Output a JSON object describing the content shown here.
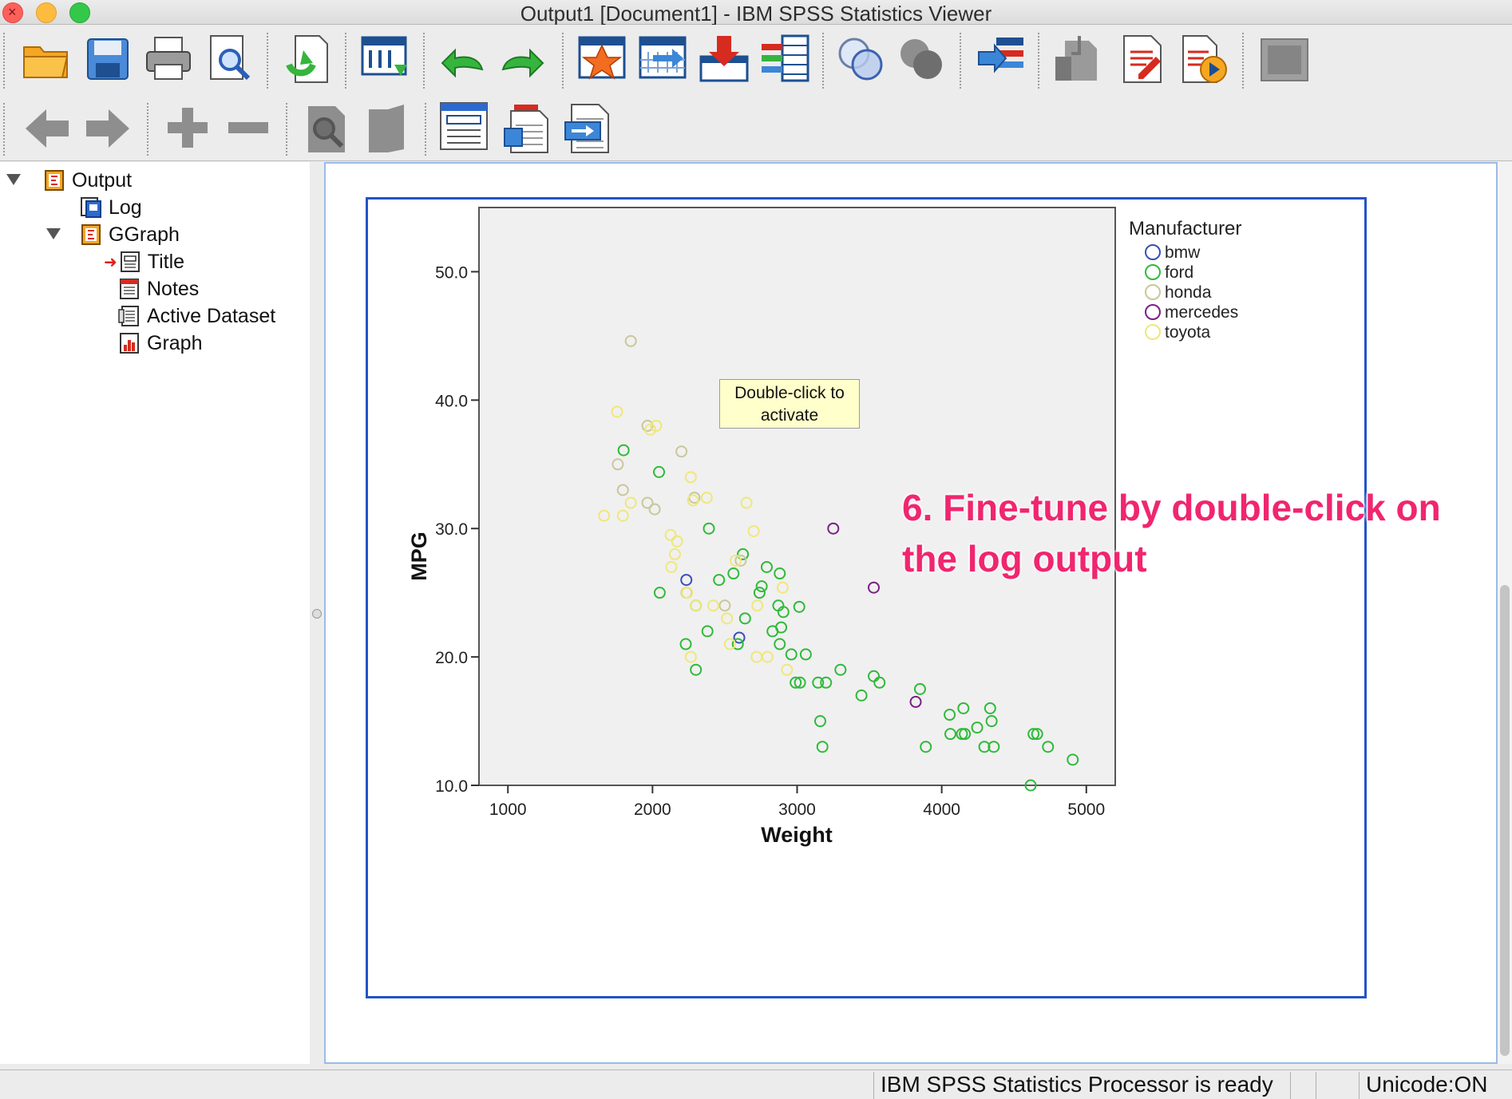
{
  "window": {
    "title": "Output1 [Document1] - IBM SPSS Statistics Viewer"
  },
  "toolbar_row1": [
    "open-icon",
    "save-icon",
    "print-icon",
    "print-preview-icon",
    "export-icon",
    "go-to-data-icon",
    "undo-icon",
    "redo-icon",
    "insert-output-icon",
    "go-to-case-icon",
    "import-icon",
    "variables-icon",
    "select-cases-icon",
    "weight-cases-icon",
    "designate-window-icon",
    "promote-icon",
    "insert-heading-icon",
    "insert-new-text-icon",
    "run-script-icon",
    "disabled-panel-icon"
  ],
  "toolbar_row2": [
    "back-icon",
    "forward-icon",
    "expand-icon",
    "collapse-icon",
    "show-icon",
    "hide-icon",
    "insert-title-icon",
    "insert-text-icon",
    "insert-file-icon"
  ],
  "outline": {
    "items": [
      {
        "label": "Output",
        "icon": "output-book-icon"
      },
      {
        "label": "Log",
        "icon": "log-icon"
      },
      {
        "label": "GGraph",
        "icon": "ggraph-book-icon"
      },
      {
        "label": "Title",
        "icon": "title-icon"
      },
      {
        "label": "Notes",
        "icon": "notes-icon"
      },
      {
        "label": "Active Dataset",
        "icon": "dataset-icon"
      },
      {
        "label": "Graph",
        "icon": "graph-icon"
      }
    ]
  },
  "tooltip": {
    "line1": "Double-click to",
    "line2": "activate"
  },
  "annotation": {
    "line1": "6. Fine-tune by double-click on",
    "line2": "the log output"
  },
  "status": {
    "processor": "IBM SPSS Statistics Processor is ready",
    "unicode": "Unicode:ON"
  },
  "colors": {
    "bmw": "#3a4fb6",
    "ford": "#2fba3a",
    "honda": "#c9c79a",
    "mercedes": "#7b1f86",
    "toyota": "#efe77a",
    "selection": "#2353c6",
    "annotation": "#f0266f"
  },
  "chart_data": {
    "type": "scatter",
    "xlabel": "Weight",
    "ylabel": "MPG",
    "xlim": [
      800,
      5200
    ],
    "ylim": [
      10,
      55
    ],
    "xticks": [
      1000,
      2000,
      3000,
      4000,
      5000
    ],
    "yticks": [
      10.0,
      20.0,
      30.0,
      40.0,
      50.0
    ],
    "legend": {
      "title": "Manufacturer",
      "position": "right"
    },
    "series": [
      {
        "name": "bmw",
        "points": [
          [
            2234,
            26.0
          ],
          [
            2600,
            21.5
          ]
        ]
      },
      {
        "name": "ford",
        "points": [
          [
            1800,
            36.1
          ],
          [
            2045,
            34.4
          ],
          [
            2050,
            25.0
          ],
          [
            2230,
            21.0
          ],
          [
            2300,
            24.0
          ],
          [
            2300,
            19.0
          ],
          [
            2380,
            22.0
          ],
          [
            2390,
            30.0
          ],
          [
            2460,
            26.0
          ],
          [
            2560,
            26.5
          ],
          [
            2590,
            21.0
          ],
          [
            2625,
            28.0
          ],
          [
            2640,
            23.0
          ],
          [
            2740,
            25.0
          ],
          [
            2755,
            25.5
          ],
          [
            2790,
            27.0
          ],
          [
            2830,
            22.0
          ],
          [
            2870,
            24.0
          ],
          [
            2880,
            26.5
          ],
          [
            2880,
            21.0
          ],
          [
            2890,
            22.3
          ],
          [
            2905,
            23.5
          ],
          [
            2960,
            20.2
          ],
          [
            2990,
            18.0
          ],
          [
            3015,
            23.9
          ],
          [
            3020,
            18.0
          ],
          [
            3060,
            20.2
          ],
          [
            3145,
            18.0
          ],
          [
            3160,
            15.0
          ],
          [
            3175,
            13.0
          ],
          [
            3200,
            18.0
          ],
          [
            3300,
            19.0
          ],
          [
            3445,
            17.0
          ],
          [
            3530,
            18.5
          ],
          [
            3570,
            18.0
          ],
          [
            3890,
            13.0
          ],
          [
            3850,
            17.5
          ],
          [
            4055,
            15.5
          ],
          [
            4060,
            14.0
          ],
          [
            4140,
            14.0
          ],
          [
            4150,
            16.0
          ],
          [
            4160,
            14.0
          ],
          [
            4245,
            14.5
          ],
          [
            4295,
            13.0
          ],
          [
            4335,
            16.0
          ],
          [
            4345,
            15.0
          ],
          [
            4360,
            13.0
          ],
          [
            4615,
            10.0
          ],
          [
            4635,
            14.0
          ],
          [
            4660,
            14.0
          ],
          [
            4735,
            13.0
          ],
          [
            4906,
            12.0
          ]
        ]
      },
      {
        "name": "honda",
        "points": [
          [
            1850,
            44.6
          ],
          [
            1760,
            35.0
          ],
          [
            1795,
            33.0
          ],
          [
            1965,
            32.0
          ],
          [
            1965,
            38.0
          ],
          [
            2015,
            31.5
          ],
          [
            2200,
            36.0
          ],
          [
            2290,
            32.4
          ],
          [
            2500,
            24.0
          ],
          [
            2610,
            27.5
          ],
          [
            2235,
            25.0
          ]
        ]
      },
      {
        "name": "mercedes",
        "points": [
          [
            3250,
            30.0
          ],
          [
            3530,
            25.4
          ],
          [
            3820,
            16.5
          ]
        ]
      },
      {
        "name": "toyota",
        "points": [
          [
            1755,
            39.1
          ],
          [
            1665,
            31.0
          ],
          [
            1795,
            31.0
          ],
          [
            1850,
            32.0
          ],
          [
            1985,
            37.7
          ],
          [
            2025,
            38.0
          ],
          [
            2125,
            29.5
          ],
          [
            2130,
            27.0
          ],
          [
            2155,
            28.0
          ],
          [
            2170,
            29.0
          ],
          [
            2265,
            34.0
          ],
          [
            2280,
            32.2
          ],
          [
            2300,
            24.0
          ],
          [
            2375,
            32.4
          ],
          [
            2420,
            24.0
          ],
          [
            2515,
            23.0
          ],
          [
            2535,
            21.0
          ],
          [
            2575,
            27.5
          ],
          [
            2650,
            32.0
          ],
          [
            2700,
            29.8
          ],
          [
            2725,
            24.0
          ],
          [
            2720,
            20.0
          ],
          [
            2795,
            20.0
          ],
          [
            2900,
            25.4
          ],
          [
            2930,
            19.0
          ],
          [
            2265,
            20.0
          ],
          [
            2240,
            25.0
          ]
        ]
      }
    ]
  }
}
